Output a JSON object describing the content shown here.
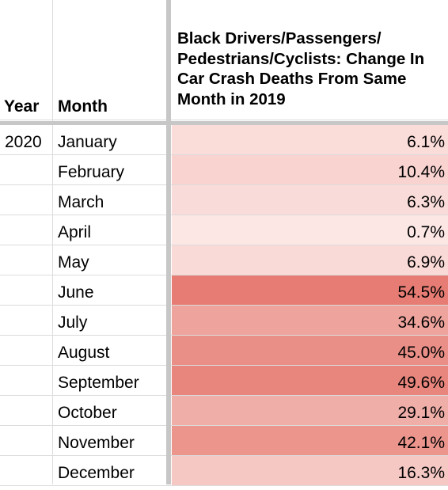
{
  "headers": {
    "year": "Year",
    "month": "Month",
    "change": "Black Drivers/Passengers/ Pedestrians/Cyclists: Change In Car Crash Deaths From Same Month in 2019"
  },
  "colors": {
    "gridline": "#dcdcdc",
    "freeze": "#c7c7c7",
    "heat_low": "#fce8e6",
    "heat_high": "#e67c73"
  },
  "rows": [
    {
      "year": "2020",
      "month": "January",
      "change": "6.1%",
      "pct": 6.1
    },
    {
      "year": "",
      "month": "February",
      "change": "10.4%",
      "pct": 10.4
    },
    {
      "year": "",
      "month": "March",
      "change": "6.3%",
      "pct": 6.3
    },
    {
      "year": "",
      "month": "April",
      "change": "0.7%",
      "pct": 0.7
    },
    {
      "year": "",
      "month": "May",
      "change": "6.9%",
      "pct": 6.9
    },
    {
      "year": "",
      "month": "June",
      "change": "54.5%",
      "pct": 54.5
    },
    {
      "year": "",
      "month": "July",
      "change": "34.6%",
      "pct": 34.6
    },
    {
      "year": "",
      "month": "August",
      "change": "45.0%",
      "pct": 45.0
    },
    {
      "year": "",
      "month": "September",
      "change": "49.6%",
      "pct": 49.6
    },
    {
      "year": "",
      "month": "October",
      "change": "29.1%",
      "pct": 29.1
    },
    {
      "year": "",
      "month": "November",
      "change": "42.1%",
      "pct": 42.1
    },
    {
      "year": "",
      "month": "December",
      "change": "16.3%",
      "pct": 16.3
    }
  ]
}
